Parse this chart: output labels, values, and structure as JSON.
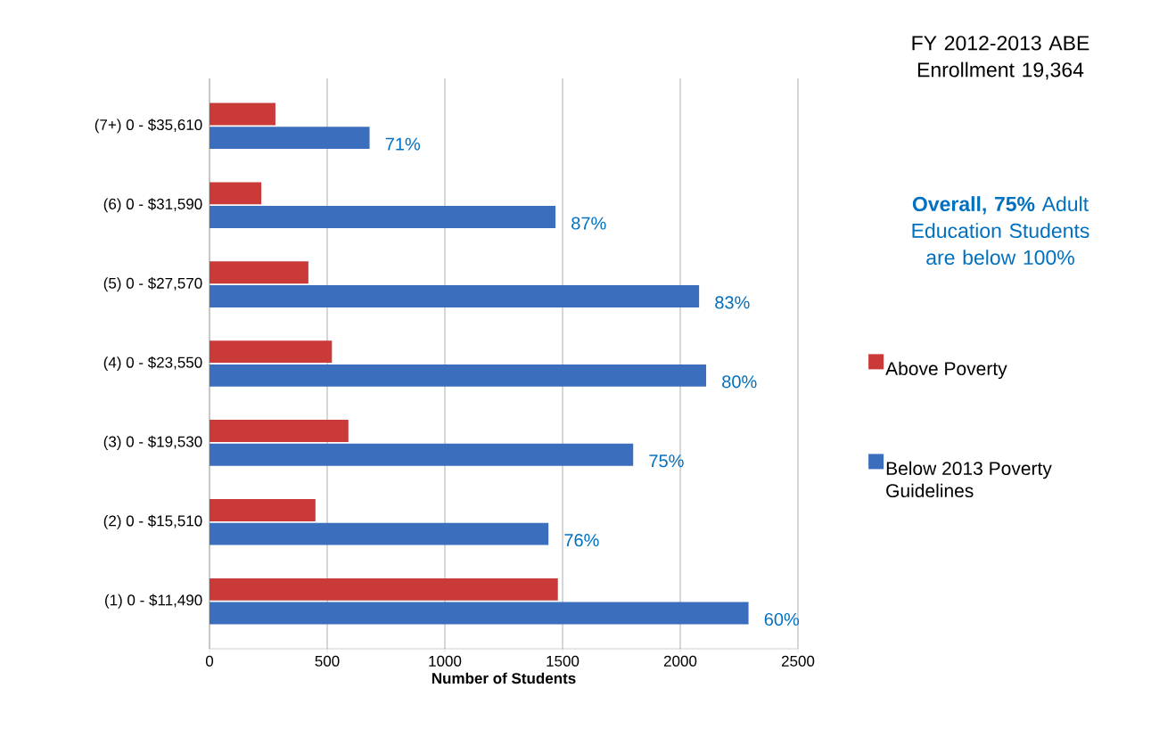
{
  "chart_data": {
    "type": "bar",
    "orientation": "horizontal",
    "title": "FY 2012-2013 ABE Enrollment 19,364",
    "subtitle": "**Overall, 75%** Adult Education Students are below 100%",
    "xlabel": "Number of Students",
    "categories": [
      "(7+) 0 - $35,610",
      "(6) 0 - $31,590",
      "(5) 0 - $27,570",
      "(4) 0 - $23,550",
      "(3) 0 - $19,530",
      "(2) 0 - $15,510",
      "(1) 0 - $11,490"
    ],
    "series": [
      {
        "name": "Above Poverty",
        "color": "#c93a38",
        "values": [
          280,
          220,
          420,
          520,
          590,
          450,
          1480
        ]
      },
      {
        "name": "Below 2013 Poverty Guidelines",
        "color": "#3c6ebe",
        "values": [
          680,
          1470,
          2080,
          2110,
          1800,
          1440,
          2290
        ]
      }
    ],
    "annotations": [
      {
        "text": "71%",
        "x": 680,
        "y": "(7+) 0 - $35,610"
      },
      {
        "text": "87%",
        "x": 1470,
        "y": "(6) 0 - $31,590"
      },
      {
        "text": "83%",
        "x": 2080,
        "y": "(5) 0 - $27,570"
      },
      {
        "text": "80%",
        "x": 2110,
        "y": "(4) 0 - $23,550"
      },
      {
        "text": "75%",
        "x": 1800,
        "y": "(3) 0 - $19,530"
      },
      {
        "text": "76%",
        "x": 1440,
        "y": "(2) 0 - $15,510"
      },
      {
        "text": "60%",
        "x": 2290,
        "y": "(1) 0 - $11,490"
      }
    ],
    "xlim": [
      0,
      2500
    ],
    "xticks": [
      0,
      500,
      1000,
      1500,
      2000,
      2500
    ],
    "grid": "x",
    "legend": "right"
  }
}
